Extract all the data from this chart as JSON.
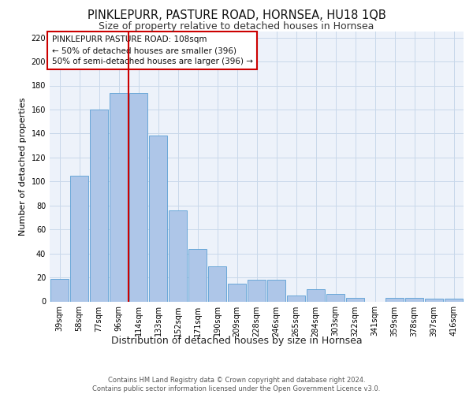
{
  "title": "PINKLEPURR, PASTURE ROAD, HORNSEA, HU18 1QB",
  "subtitle": "Size of property relative to detached houses in Hornsea",
  "xlabel": "Distribution of detached houses by size in Hornsea",
  "ylabel": "Number of detached properties",
  "categories": [
    "39sqm",
    "58sqm",
    "77sqm",
    "96sqm",
    "114sqm",
    "133sqm",
    "152sqm",
    "171sqm",
    "190sqm",
    "209sqm",
    "228sqm",
    "246sqm",
    "265sqm",
    "284sqm",
    "303sqm",
    "322sqm",
    "341sqm",
    "359sqm",
    "378sqm",
    "397sqm",
    "416sqm"
  ],
  "values": [
    19,
    105,
    160,
    174,
    174,
    138,
    76,
    44,
    29,
    15,
    18,
    18,
    5,
    10,
    6,
    3,
    0,
    3,
    3,
    2,
    2
  ],
  "bar_color": "#aec6e8",
  "bar_edge_color": "#5a9fd4",
  "grid_color": "#c8d8ea",
  "background_color": "#edf2fa",
  "vline_color": "#cc0000",
  "annotation_text": "PINKLEPURR PASTURE ROAD: 108sqm\n← 50% of detached houses are smaller (396)\n50% of semi-detached houses are larger (396) →",
  "annotation_box_facecolor": "#ffffff",
  "annotation_box_edgecolor": "#cc0000",
  "ylim": [
    0,
    225
  ],
  "yticks": [
    0,
    20,
    40,
    60,
    80,
    100,
    120,
    140,
    160,
    180,
    200,
    220
  ],
  "footer_text": "Contains HM Land Registry data © Crown copyright and database right 2024.\nContains public sector information licensed under the Open Government Licence v3.0.",
  "title_fontsize": 10.5,
  "subtitle_fontsize": 9,
  "xlabel_fontsize": 9,
  "ylabel_fontsize": 8,
  "tick_fontsize": 7,
  "annotation_fontsize": 7.5,
  "footer_fontsize": 6
}
